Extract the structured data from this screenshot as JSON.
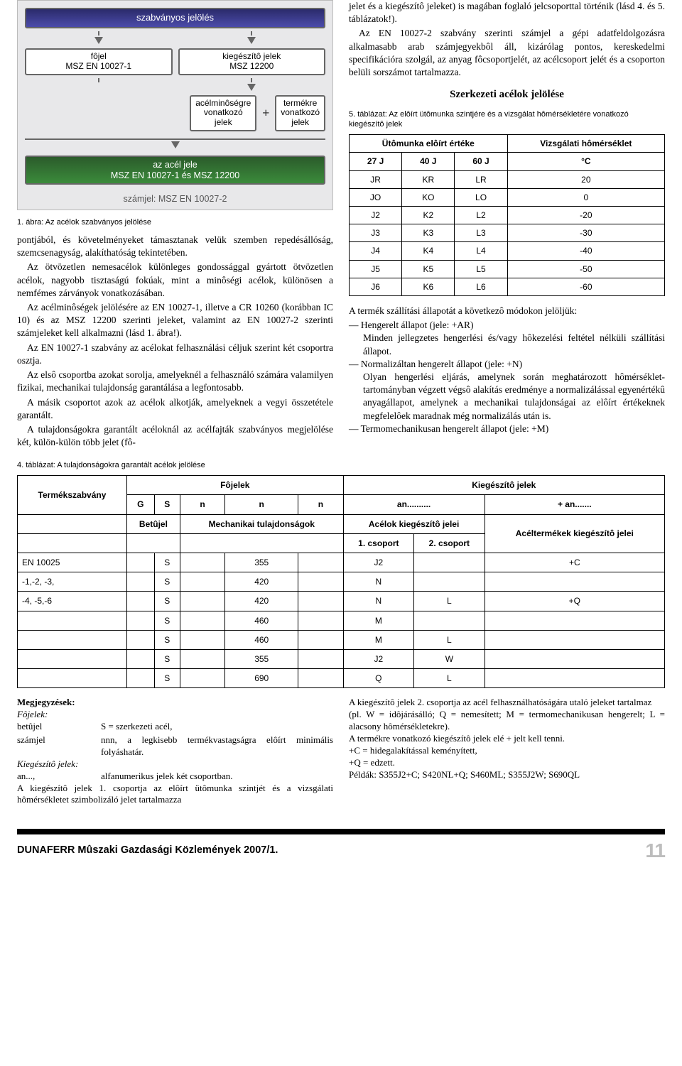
{
  "fig1": {
    "top": "szabványos jelölés",
    "left_head": "fôjel",
    "left_sub": "MSZ EN 10027-1",
    "right_head": "kiegészítô jelek",
    "right_sub": "MSZ 12200",
    "left_mid_l1": "acélminôségre",
    "left_mid_l2": "vonatkozó",
    "left_mid_l3": "jelek",
    "right_mid_l1": "termékre",
    "right_mid_l2": "vonatkozó",
    "right_mid_l3": "jelek",
    "long_l1": "az acél jele",
    "long_l2": "MSZ EN 10027-1 és MSZ 12200",
    "foot": "számjel: MSZ EN 10027-2",
    "caption": "1. ábra: Az acélok szabványos jelölése"
  },
  "leftcol": {
    "p1": "pontjából, és követelményeket támasztanak velük szemben repedésállóság, szemcsenagyság, alakíthatóság tekintetében.",
    "p2": "Az ötvözetlen nemesacélok különleges gondossággal gyártott ötvözetlen acélok, nagyobb tisztaságú fokúak, mint a minôségi acélok, különösen a nemfémes zárványok vonatkozásában.",
    "p3": "Az acélminôségek jelölésére az EN 10027-1, illetve a CR 10260 (korábban IC 10) és az MSZ 12200 szerinti jeleket, valamint az EN 10027-2 szerinti számjeleket kell alkalmazni (lásd 1. ábra!).",
    "p4": "Az EN 10027-1 szabvány az acélokat felhasználási céljuk szerint két csoportra osztja.",
    "p5": "Az elsô csoportba azokat sorolja, amelyeknél a felhasználó számára valamilyen fizikai, mechanikai tulajdonság garantálása a legfontosabb.",
    "p6": "A másik csoportot azok az acélok alkotják, amelyeknek a vegyi összetétele garantált.",
    "p7": "A tulajdonságokra garantált acéloknál az acélfajták szabványos megjelölése két, külön-külön több jelet (fô-"
  },
  "rightcol": {
    "p1": "jelet és a kiegészítô jeleket) is magában foglaló jelcsoporttal történik (lásd 4. és 5. táblázatok!).",
    "p2": "Az EN 10027-2 szabvány szerinti számjel a gépi adatfeldolgozásra alkalmasabb arab számjegyekbôl áll, kizárólag pontos, kereskedelmi specifikációra szolgál, az anyag fôcsoportjelét, az acélcsoport jelét és a csoporton belüli sorszámot tartalmazza.",
    "heading": "Szerkezeti acélok jelölése",
    "t5cap": "5. táblázat: Az elôírt ütômunka szintjére és a vizsgálat hômérsékletére vonatkozó kiegészítô jelek",
    "p3": "A termék szállítási állapotát a következô módokon jelöljük:",
    "dash": [
      {
        "h": "— Hengerelt állapot (jele: +AR)",
        "b": "Minden jellegzetes hengerlési és/vagy hôkezelési feltétel nélküli szállítási állapot."
      },
      {
        "h": "— Normalizáltan hengerelt állapot (jele: +N)",
        "b": "Olyan hengerlési eljárás, amelynek során meghatározott hômérséklet-tartományban végzett végsô alakítás eredménye a normalizálással egyenértékû anyagállapot, amelynek a mechanikai tulajdonságai az elôírt értékeknek megfelelôek maradnak még normalizálás után is."
      },
      {
        "h": "— Termomechanikusan hengerelt állapot (jele: +M)",
        "b": ""
      }
    ]
  },
  "t5": {
    "head_impact": "Ütômunka elôírt értéke",
    "head_temp": "Vizsgálati hômérséklet",
    "cols": [
      "27 J",
      "40 J",
      "60 J",
      "°C"
    ],
    "rows": [
      [
        "JR",
        "KR",
        "LR",
        "20"
      ],
      [
        "JO",
        "KO",
        "LO",
        "0"
      ],
      [
        "J2",
        "K2",
        "L2",
        "-20"
      ],
      [
        "J3",
        "K3",
        "L3",
        "-30"
      ],
      [
        "J4",
        "K4",
        "L4",
        "-40"
      ],
      [
        "J5",
        "K5",
        "L5",
        "-50"
      ],
      [
        "J6",
        "K6",
        "L6",
        "-60"
      ]
    ]
  },
  "t4": {
    "caption": "4. táblázat:  A tulajdonságokra garantált acélok jelölése",
    "h_std": "Termékszabvány",
    "h_main": "Fôjelek",
    "h_aux": "Kiegészítô jelek",
    "sub": [
      "G",
      "S",
      "n",
      "n",
      "n",
      "an..........",
      "+ an......."
    ],
    "r3_letter": "Betûjel",
    "r3_mech": "Mechanikai tulajdonságok",
    "r3_steelaux": "Acélok kiegészítô jelei",
    "r3_prodaux": "Acéltermékek kiegészítô jelei",
    "r4_g1": "1. csoport",
    "r4_g2": "2. csoport",
    "rows": [
      [
        "EN 10025",
        "S",
        "",
        "355",
        "",
        "J2",
        "",
        "+C"
      ],
      [
        "-1,-2, -3,",
        "S",
        "",
        "420",
        "",
        "N",
        "",
        ""
      ],
      [
        "-4, -5,-6",
        "S",
        "",
        "420",
        "",
        "N",
        "L",
        "+Q"
      ],
      [
        "",
        "S",
        "",
        "460",
        "",
        "M",
        "",
        ""
      ],
      [
        "",
        "S",
        "",
        "460",
        "",
        "M",
        "L",
        ""
      ],
      [
        "",
        "S",
        "",
        "355",
        "",
        "J2",
        "W",
        ""
      ],
      [
        "",
        "S",
        "",
        "690",
        "",
        "Q",
        "L",
        ""
      ]
    ]
  },
  "notes": {
    "left": {
      "title": "Megjegyzések:",
      "fojelek": "Fôjelek:",
      "l1k": "betûjel",
      "l1v": "S = szerkezeti acél,",
      "l2k": "számjel",
      "l2v": "nnn, a legkisebb termékvastagságra elôírt minimális folyáshatár.",
      "kieg": "Kiegészítô jelek:",
      "l3k": "an...,",
      "l3v": "alfanumerikus jelek két csoportban.",
      "tail": "A kiegészítô jelek 1. csoportja az elôírt ütômunka szintjét és a vizsgálati hômérsékletet szimbolizáló jelet tartalmazza"
    },
    "right": {
      "p1": "A kiegészítô jelek 2. csoportja az acél felhasználhatóságára utaló jeleket tartalmaz",
      "p2": "(pl. W = idôjárásálló; Q = nemesített; M = termomechanikusan hengerelt; L = alacsony hômérsékletekre).",
      "p3": "A termékre vonatkozó kiegészítô jelek elé + jelt kell tenni.",
      "p4": "+C = hidegalakítással keményített,",
      "p5": "+Q = edzett.",
      "p6": "Példák: S355J2+C; S420NL+Q; S460ML; S355J2W; S690QL"
    }
  },
  "footer": {
    "pub": "DUNAFERR Mûszaki Gazdasági Közlemények 2007/1.",
    "page": "11"
  }
}
